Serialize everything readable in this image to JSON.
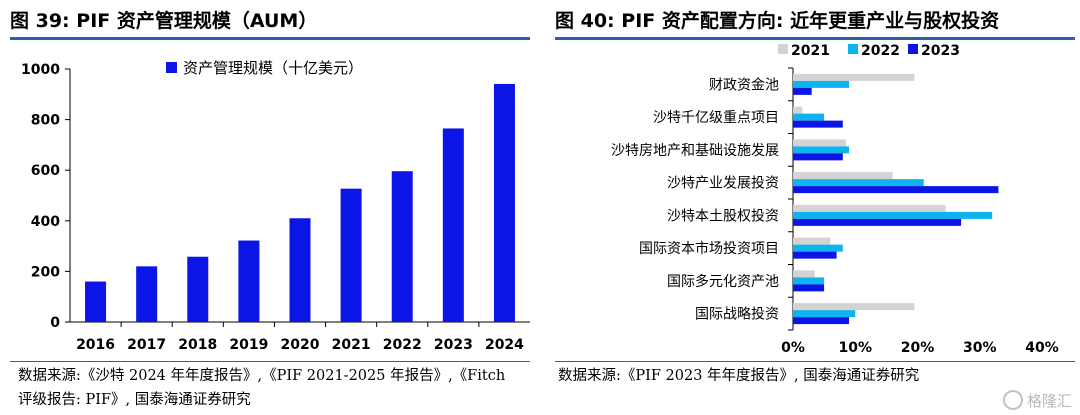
{
  "left": {
    "title": "图 39:  PIF 资产管理规模（AUM）",
    "source_lines": [
      "数据来源:《沙特 2024 年年度报告》,《PIF 2021-2025 年报告》,《Fitch",
      "评级报告: PIF》, 国泰海通证券研究"
    ],
    "colors": {
      "bar": "#0b16e6",
      "rule": "#2f5fa8"
    }
  },
  "right": {
    "title": "图 40:  PIF 资产配置方向: 近年更重产业与股权投资",
    "source_lines": [
      "数据来源:《PIF 2023 年年度报告》, 国泰海通证券研究"
    ],
    "colors": {
      "rule": "#2f5fa8"
    }
  },
  "watermark": {
    "text": "格隆汇",
    "icon": "gelonghui-logo-icon"
  },
  "chart_data": [
    {
      "type": "bar",
      "title": "",
      "categories": [
        "2016",
        "2017",
        "2018",
        "2019",
        "2020",
        "2021",
        "2022",
        "2023",
        "2024"
      ],
      "series": [
        {
          "name": "资产管理规模（十亿美元）",
          "color": "#0b16e6",
          "values": [
            160,
            220,
            258,
            322,
            410,
            527,
            596,
            765,
            941
          ]
        }
      ],
      "ylim": [
        0,
        1000
      ],
      "yticks": [
        "0",
        "200",
        "400",
        "600",
        "800",
        "1000"
      ],
      "xlabel": "",
      "ylabel": "",
      "grid": false,
      "legend": "top-center"
    },
    {
      "type": "bar",
      "orientation": "horizontal",
      "title": "",
      "categories": [
        "财政资金池",
        "沙特千亿级重点项目",
        "沙特房地产和基础设施发展",
        "沙特产业发展投资",
        "沙特本土股权投资",
        "国际资本市场投资项目",
        "国际多元化资产池",
        "国际战略投资"
      ],
      "series": [
        {
          "name": "2021",
          "color": "#d3d3d3",
          "values": [
            19.5,
            1.5,
            8.5,
            16,
            24.5,
            6,
            3.5,
            19.5
          ]
        },
        {
          "name": "2022",
          "color": "#0fb4ee",
          "values": [
            9,
            5,
            9,
            21,
            32,
            8,
            5,
            10
          ]
        },
        {
          "name": "2023",
          "color": "#0b16e6",
          "values": [
            3,
            8,
            8,
            33,
            27,
            7,
            5,
            9
          ]
        }
      ],
      "xlim": [
        0,
        40
      ],
      "xticks": [
        "0%",
        "10%",
        "20%",
        "30%",
        "40%"
      ],
      "xlabel": "",
      "ylabel": "",
      "grid": false,
      "legend": "top-left"
    }
  ]
}
